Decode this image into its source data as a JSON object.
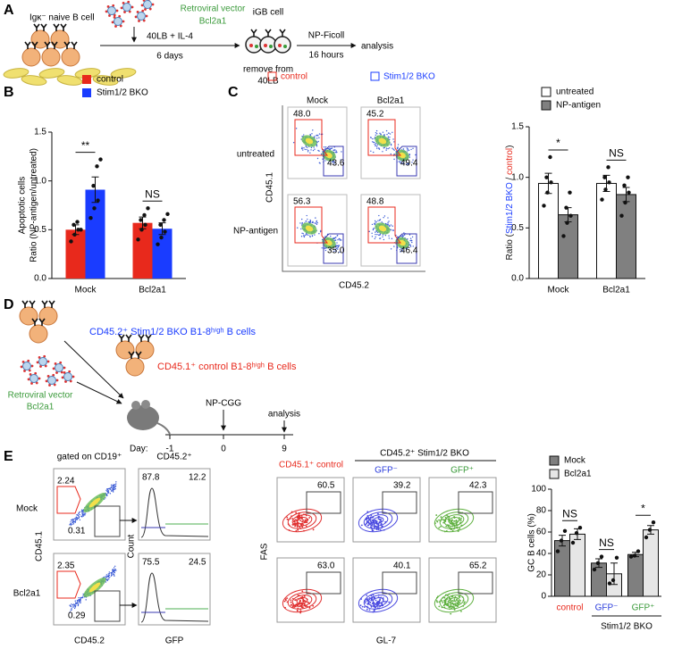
{
  "panels": [
    "A",
    "B",
    "C",
    "D",
    "E"
  ],
  "schematic_A": {
    "naive": "Igκ⁻ naive B cell",
    "vector": "Retroviral vector",
    "gene": "Bcl2a1",
    "culture": "40LB + IL-4",
    "duration": "6 days",
    "igb": "iGB cell",
    "remove": "remove from",
    "remove2": "40LB",
    "stim": "NP-Ficoll",
    "stim_time": "16 hours",
    "end": "analysis"
  },
  "schematic_D": {
    "bko": "CD45.2⁺ Stim1/2 BKO B1-8ʰⁱᵍʰ B cells",
    "ctrl": "CD45.1⁺ control  B1-8ʰⁱᵍʰ B cells",
    "vector": "Retroviral vector",
    "gene": "Bcl2a1",
    "day_label": "Day:",
    "days": [
      "-1",
      "0",
      "9"
    ],
    "immunization": "NP-CGG",
    "end": "analysis"
  },
  "flow_C": {
    "legend": [
      "control",
      "Stim1/2 BKO"
    ],
    "columns": [
      "Mock",
      "Bcl2a1"
    ],
    "rows": [
      "untreated",
      "NP-antigen"
    ],
    "gates": [
      [
        [
          "48.0",
          "43.6"
        ],
        [
          "45.2",
          "49.4"
        ]
      ],
      [
        [
          "56.3",
          "35.0"
        ],
        [
          "48.8",
          "46.4"
        ]
      ]
    ],
    "xlabel": "CD45.2",
    "ylabel": "CD45.1"
  },
  "flow_E": {
    "gate_label": "gated on CD19⁺",
    "hist_label": "CD45.2⁺",
    "rows": [
      "Mock",
      "Bcl2a1"
    ],
    "dot_gates": [
      [
        "2.24",
        "0.31"
      ],
      [
        "2.35",
        "0.29"
      ]
    ],
    "hist_gates": [
      [
        "87.8",
        "12.2"
      ],
      [
        "75.5",
        "24.5"
      ]
    ],
    "xlabels": [
      "CD45.2",
      "GFP"
    ],
    "ylabels": [
      "CD45.1",
      "Count"
    ],
    "groups": {
      "control": "CD45.1⁺ control",
      "bko": "CD45.2⁺ Stim1/2 BKO",
      "neg": "GFP⁻",
      "pos": "GFP⁺"
    },
    "fas_gates": [
      [
        "60.5",
        "39.2",
        "42.3"
      ],
      [
        "63.0",
        "40.1",
        "65.2"
      ]
    ],
    "fas_x": "GL-7",
    "fas_y": "FAS"
  },
  "chart_data": [
    {
      "type": "bar",
      "ylabel_title": "Apoptotic cells",
      "ylabel": "Ratio (NP-antigen/untreated)",
      "categories": [
        "Mock",
        "Bcl2a1"
      ],
      "series": [
        {
          "name": "control",
          "color": "#e8291c",
          "values": [
            0.5,
            0.57
          ],
          "errors": [
            0.05,
            0.06
          ],
          "points": [
            [
              0.38,
              0.45,
              0.5,
              0.55,
              0.58,
              0.5
            ],
            [
              0.4,
              0.5,
              0.55,
              0.6,
              0.65,
              0.72
            ]
          ]
        },
        {
          "name": "Stim1/2 BKO",
          "color": "#1a3cff",
          "values": [
            0.91,
            0.51
          ],
          "errors": [
            0.13,
            0.06
          ],
          "points": [
            [
              0.62,
              0.72,
              0.8,
              0.95,
              1.15,
              1.22
            ],
            [
              0.35,
              0.42,
              0.48,
              0.55,
              0.6,
              0.66
            ]
          ]
        }
      ],
      "ylim": [
        0,
        1.5
      ],
      "yticks": [
        {
          "value": 0,
          "label": "0.0"
        },
        0.5,
        {
          "value": 1,
          "label": "1.0"
        },
        1.5
      ],
      "significance": [
        "**",
        "NS"
      ]
    },
    {
      "type": "bar",
      "ylabel": [
        "Ratio (",
        "Stim1/2 BKO",
        " / ",
        "control",
        ")"
      ],
      "categories": [
        "Mock",
        "Bcl2a1"
      ],
      "series": [
        {
          "name": "untreated",
          "color": "#ffffff",
          "values": [
            0.94,
            0.94
          ],
          "errors": [
            0.1,
            0.08
          ],
          "points": [
            [
              0.72,
              0.85,
              0.95,
              1.0,
              1.2
            ],
            [
              0.78,
              0.88,
              0.95,
              1.0,
              1.1
            ]
          ]
        },
        {
          "name": "NP-antigen",
          "color": "#808080",
          "values": [
            0.63,
            0.83
          ],
          "errors": [
            0.07,
            0.07
          ],
          "points": [
            [
              0.42,
              0.55,
              0.62,
              0.7,
              0.85
            ],
            [
              0.62,
              0.75,
              0.85,
              0.92,
              1.0
            ]
          ]
        }
      ],
      "ylim": [
        0,
        1.5
      ],
      "yticks": [
        {
          "value": 0,
          "label": "0.0"
        },
        0.5,
        {
          "value": 1,
          "label": "1.0"
        },
        1.5
      ],
      "significance": [
        "*",
        "NS"
      ]
    },
    {
      "type": "bar",
      "ylabel": "GC B cells (%)",
      "categories": [
        "control",
        "GFP⁻",
        "GFP⁺"
      ],
      "category_colors": [
        "#e8291c",
        "#2a3cdc",
        "#3a9a3a"
      ],
      "group_label": "Stim1/2 BKO",
      "series": [
        {
          "name": "Mock",
          "color": "#7f7f7f",
          "values": [
            52,
            31,
            39
          ],
          "errors": [
            5,
            4,
            2
          ],
          "points": [
            [
              42,
              52,
              61
            ],
            [
              25,
              31,
              37
            ],
            [
              37,
              38,
              42
            ]
          ]
        },
        {
          "name": "Bcl2a1",
          "color": "#e6e6e6",
          "values": [
            58,
            21,
            62
          ],
          "errors": [
            5,
            10,
            4
          ],
          "points": [
            [
              50,
              59,
              64
            ],
            [
              12,
              15,
              36
            ],
            [
              55,
              62,
              69
            ]
          ]
        }
      ],
      "ylim": [
        0,
        100
      ],
      "yticks": [
        0,
        20,
        40,
        60,
        80,
        100
      ],
      "significance": [
        "NS",
        "NS",
        "*"
      ]
    }
  ]
}
